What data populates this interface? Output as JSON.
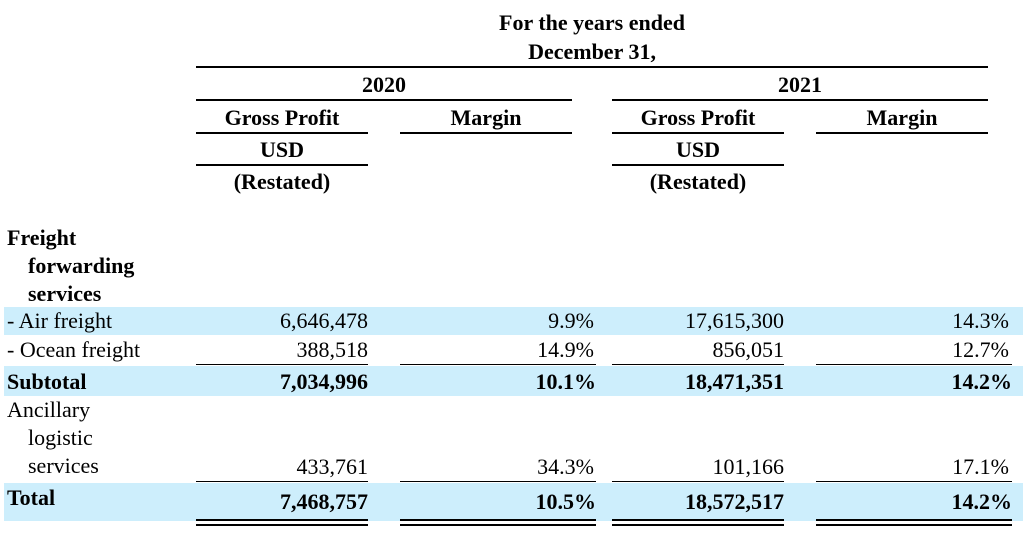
{
  "header": {
    "line1": "For the years ended",
    "line2": "December 31,",
    "year_2020": "2020",
    "year_2021": "2021",
    "gross_profit": "Gross Profit",
    "margin": "Margin",
    "usd": "USD",
    "restated": "(Restated)"
  },
  "rows": {
    "freight_title": [
      "Freight",
      "forwarding",
      "services"
    ],
    "air": {
      "label": "- Air freight",
      "gp2020": "6,646,478",
      "m2020": "9.9%",
      "gp2021": "17,615,300",
      "m2021": "14.3%"
    },
    "ocean": {
      "label": "- Ocean freight",
      "gp2020": "388,518",
      "m2020": "14.9%",
      "gp2021": "856,051",
      "m2021": "12.7%"
    },
    "subtotal": {
      "label": "Subtotal",
      "gp2020": "7,034,996",
      "m2020": "10.1%",
      "gp2021": "18,471,351",
      "m2021": "14.2%"
    },
    "ancillary": {
      "label_lines": [
        "Ancillary",
        "logistic",
        "services"
      ],
      "gp2020": "433,761",
      "m2020": "34.3%",
      "gp2021": "101,166",
      "m2021": "17.1%"
    },
    "total": {
      "label": "Total",
      "gp2020": "7,468,757",
      "m2020_num": "10.5",
      "m2020_sym": "%",
      "gp2021": "18,572,517",
      "m2021_num": "14.2",
      "m2021_sym": "%"
    }
  },
  "colors": {
    "band": "#cdeefc"
  }
}
